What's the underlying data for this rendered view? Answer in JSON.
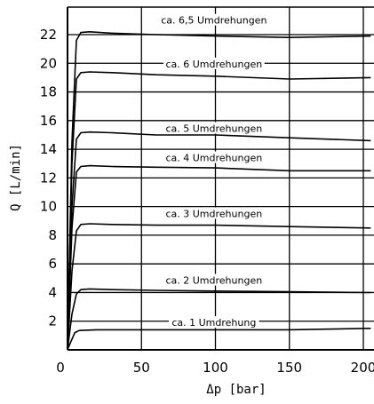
{
  "chart_data": {
    "type": "line",
    "title": "",
    "xlabel": "Δp  [bar]",
    "ylabel": "Q [L/min]",
    "xlim": [
      0,
      205
    ],
    "ylim": [
      0,
      23.5
    ],
    "xticks": [
      0,
      50,
      100,
      150,
      200
    ],
    "xtick_labels": [
      "0",
      "50",
      "100",
      "150",
      "200"
    ],
    "yticks": [
      2,
      4,
      6,
      8,
      10,
      12,
      14,
      16,
      18,
      20,
      22
    ],
    "ytick_labels": [
      "2",
      "4",
      "6",
      "8",
      "10",
      "12",
      "14",
      "16",
      "18",
      "20",
      "22"
    ],
    "grid": true,
    "series": [
      {
        "name": "ca. 1 Umdrehung",
        "x": [
          0,
          2,
          5,
          8,
          20,
          60,
          100,
          150,
          205
        ],
        "y": [
          0,
          0.5,
          1.2,
          1.35,
          1.4,
          1.4,
          1.4,
          1.4,
          1.5
        ]
      },
      {
        "name": "ca. 2 Umdrehungen",
        "x": [
          0,
          3,
          6,
          9,
          15,
          30,
          60,
          100,
          150,
          205
        ],
        "y": [
          0,
          2.5,
          3.9,
          4.2,
          4.25,
          4.2,
          4.15,
          4.1,
          4.05,
          4.0
        ]
      },
      {
        "name": "ca. 3 Umdrehungen",
        "x": [
          0,
          3,
          6,
          9,
          15,
          30,
          60,
          100,
          150,
          205
        ],
        "y": [
          0,
          5.5,
          8.3,
          8.75,
          8.8,
          8.75,
          8.7,
          8.7,
          8.6,
          8.5
        ]
      },
      {
        "name": "ca. 4 Umdrehungen",
        "x": [
          0,
          3,
          6,
          9,
          15,
          30,
          60,
          100,
          150,
          205
        ],
        "y": [
          0,
          8.5,
          12.4,
          12.8,
          12.85,
          12.8,
          12.75,
          12.7,
          12.5,
          12.5
        ]
      },
      {
        "name": "ca. 5 Umdrehungen",
        "x": [
          0,
          3,
          6,
          9,
          15,
          30,
          60,
          100,
          150,
          205
        ],
        "y": [
          0,
          10.0,
          14.7,
          15.15,
          15.2,
          15.15,
          15.0,
          15.0,
          14.8,
          14.6
        ]
      },
      {
        "name": "ca. 6 Umdrehungen",
        "x": [
          0,
          3,
          6,
          9,
          15,
          30,
          60,
          100,
          150,
          205
        ],
        "y": [
          0,
          13.0,
          18.9,
          19.35,
          19.4,
          19.35,
          19.2,
          19.1,
          18.9,
          19.0
        ]
      },
      {
        "name": "ca. 6,5 Umdrehungen",
        "x": [
          0,
          3,
          6,
          9,
          15,
          30,
          60,
          100,
          150,
          205
        ],
        "y": [
          0,
          14.5,
          21.6,
          22.15,
          22.2,
          22.1,
          22.0,
          21.9,
          21.8,
          21.9
        ]
      }
    ],
    "series_label_anchor": [
      {
        "x": 99,
        "y": 1.85
      },
      {
        "x": 99,
        "y": 4.8
      },
      {
        "x": 99,
        "y": 9.45
      },
      {
        "x": 99,
        "y": 13.35
      },
      {
        "x": 99,
        "y": 15.4
      },
      {
        "x": 99,
        "y": 19.9
      },
      {
        "x": 99,
        "y": 22.95
      }
    ]
  }
}
